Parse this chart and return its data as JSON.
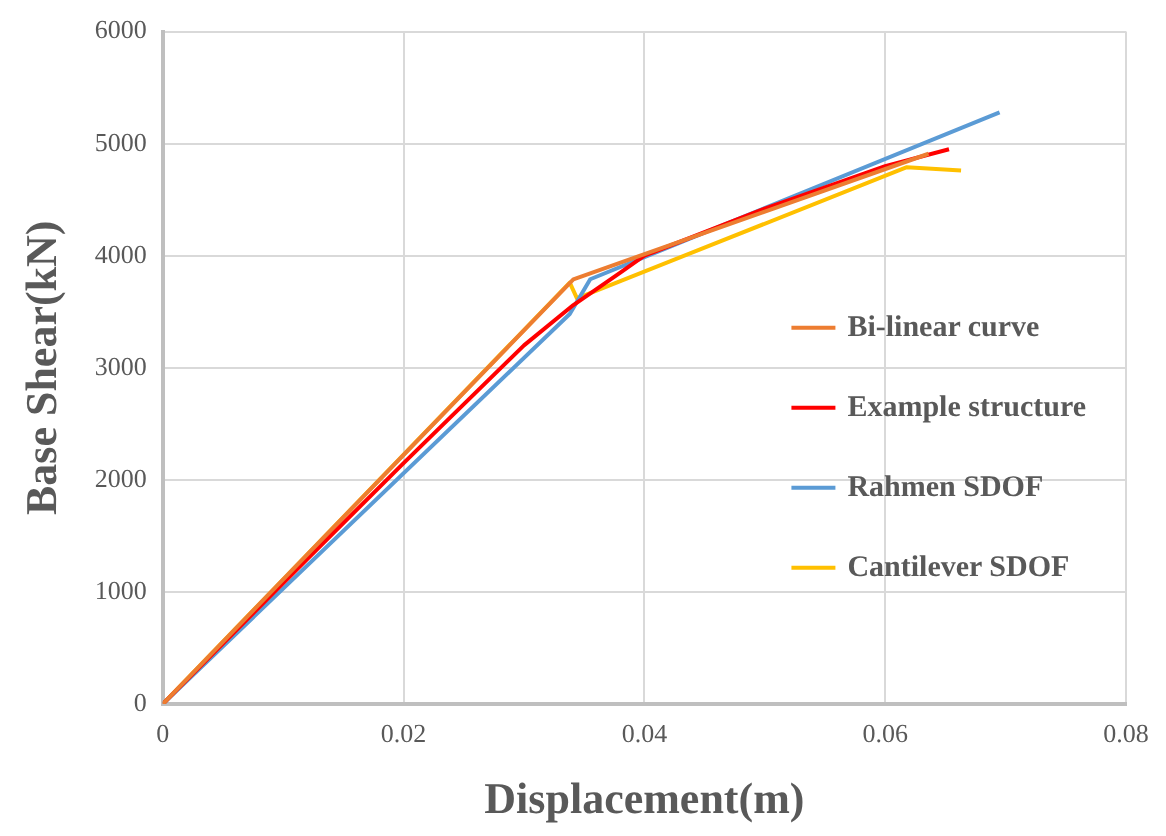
{
  "chart_data": {
    "type": "line",
    "xlabel": "Displacement(m)",
    "ylabel": "Base Shear(kN)",
    "xlim": [
      0,
      0.08
    ],
    "xticks": [
      0,
      0.02,
      0.04,
      0.06,
      0.08
    ],
    "ylim": [
      0,
      6000
    ],
    "yticks": [
      0,
      1000,
      2000,
      3000,
      4000,
      5000,
      6000
    ],
    "grid": true,
    "legend": "center right",
    "marker": "none",
    "line_style": "solid",
    "series": [
      {
        "name": "Bi-linear curve",
        "color": "#ed7d31",
        "x": [
          0,
          0.0341,
          0.0636
        ],
        "values": [
          0,
          3790,
          4910
        ]
      },
      {
        "name": "Example structure",
        "color": "#ff0000",
        "x": [
          0,
          0.01,
          0.02,
          0.03,
          0.0341,
          0.038,
          0.04,
          0.05,
          0.06,
          0.0653
        ],
        "values": [
          0,
          1080,
          2150,
          3200,
          3560,
          3850,
          4000,
          4420,
          4800,
          4950
        ]
      },
      {
        "name": "Rahmen SDOF",
        "color": "#5b9bd5",
        "x": [
          0,
          0.0338,
          0.0355,
          0.0695
        ],
        "values": [
          0,
          3480,
          3790,
          5280
        ]
      },
      {
        "name": "Cantilever SDOF",
        "color": "#ffc000",
        "x": [
          0,
          0.0338,
          0.0344,
          0.0618,
          0.0663
        ],
        "values": [
          0,
          3760,
          3620,
          4790,
          4760
        ]
      }
    ]
  }
}
